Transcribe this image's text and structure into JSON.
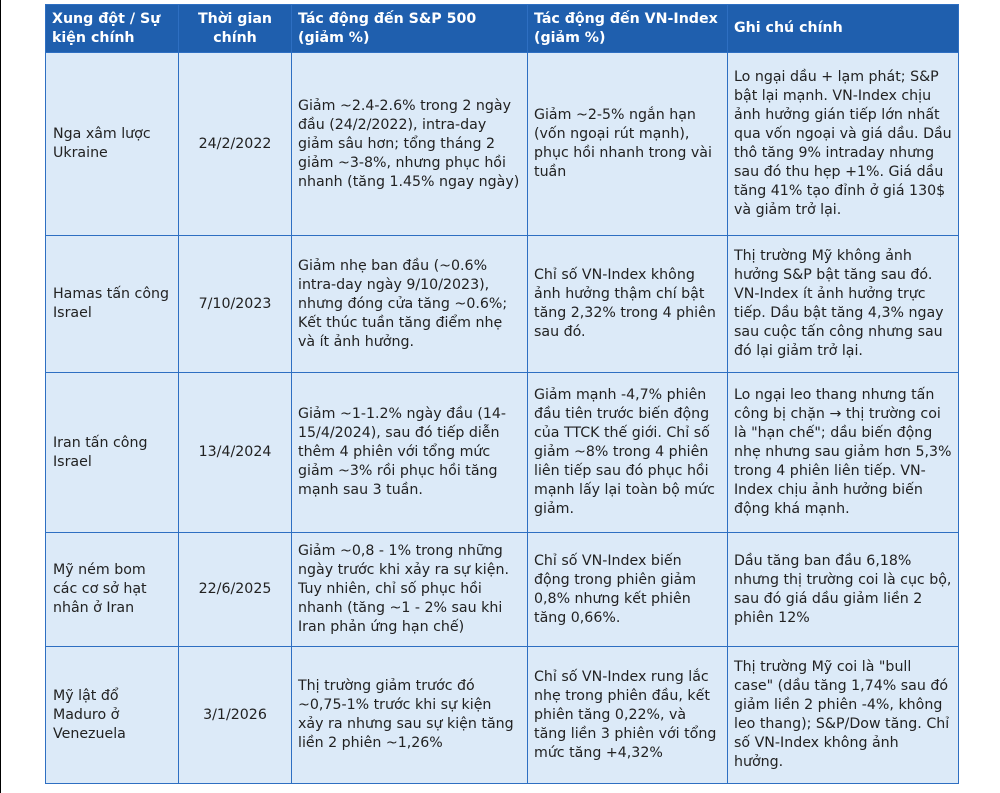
{
  "table": {
    "headers": [
      "Xung đột / Sự kiện chính",
      "Thời gian chính",
      "Tác động đến S&P 500 (giảm %)",
      "Tác động đến VN-Index (giảm %)",
      "Ghi chú chính"
    ],
    "rows": [
      {
        "event": "Nga xâm lược Ukraine",
        "date": "24/2/2022",
        "sp500": "Giảm ~2.4-2.6% trong 2 ngày đầu (24/2/2022), intra-day giảm sâu hơn; tổng tháng 2 giảm ~3-8%, nhưng phục hồi nhanh (tăng 1.45% ngay ngày)",
        "vnindex": "Giảm ~2-5% ngắn hạn (vốn ngoại rút mạnh), phục hồi nhanh trong vài tuần",
        "notes": "Lo ngại dầu + lạm phát; S&P bật lại mạnh. VN-Index chịu ảnh hưởng gián tiếp lớn nhất qua vốn ngoại và giá dầu. Dầu thô tăng 9% intraday nhưng sau đó thu hẹp +1%. Giá dầu tăng 41% tạo đỉnh ở giá 130$ và giảm trở lại."
      },
      {
        "event": "Hamas tấn công Israel",
        "date": "7/10/2023",
        "sp500": "Giảm nhẹ ban đầu (~0.6% intra-day ngày 9/10/2023), nhưng đóng cửa tăng ~0.6%; Kết thúc tuần tăng điểm nhẹ và ít ảnh hưởng.",
        "vnindex": "Chỉ số VN-Index không ảnh hưởng thậm chí bật tăng 2,32% trong 4 phiên sau đó.",
        "notes": "Thị trường Mỹ không ảnh hưởng S&P bật tăng sau đó. VN-Index ít ảnh hưởng trực tiếp. Dầu bật tăng 4,3% ngay sau cuộc tấn công nhưng sau đó lại giảm trở lại."
      },
      {
        "event": "Iran tấn công Israel",
        "date": "13/4/2024",
        "sp500": "Giảm ~1-1.2% ngày đầu (14-15/4/2024), sau đó tiếp diễn thêm 4 phiên với tổng mức giảm ~3% rồi phục hồi tăng mạnh sau 3 tuần.",
        "vnindex": "Giảm mạnh -4,7% phiên đầu tiên trước biến động của TTCK thế giới. Chỉ số giảm ~8% trong 4 phiên liên tiếp sau đó phục hồi mạnh lấy lại toàn bộ mức giảm.",
        "notes": "Lo ngại leo thang nhưng tấn công bị chặn → thị trường coi là \"hạn chế\"; dầu biến động nhẹ nhưng sau giảm hơn 5,3% trong 4 phiên liên tiếp. VN-Index chịu ảnh hưởng biến động khá mạnh."
      },
      {
        "event": "Mỹ ném bom các cơ sở hạt nhân ở Iran",
        "date": "22/6/2025",
        "sp500": "Giảm ~0,8 - 1% trong những ngày trước khi xảy ra sự kiện. Tuy nhiên, chỉ số  phục hồi nhanh (tăng ~1 - 2% sau khi Iran phản ứng hạn chế)",
        "vnindex": "Chỉ số VN-Index biến động trong phiên giảm 0,8% nhưng kết phiên tăng 0,66%.",
        "notes": "Dầu tăng ban đầu 6,18% nhưng thị trường coi là cục bộ, sau đó giá dầu giảm liền 2 phiên 12%"
      },
      {
        "event": "Mỹ lật đổ Maduro ở Venezuela",
        "date": "3/1/2026",
        "sp500": "Thị trường giảm trước đó ~0,75-1% trước khi sự kiện xảy ra nhưng sau sự kiện tăng liền 2 phiên ~1,26%",
        "vnindex": "Chỉ số VN-Index rung lắc nhẹ trong phiên đầu, kết phiên tăng 0,22%, và tăng liền 3 phiên với tổng mức tăng +4,32%",
        "notes": "Thị trường Mỹ coi là \"bull case\" (dầu tăng 1,74% sau đó giảm liền 2 phiên -4%, không leo thang); S&P/Dow tăng. Chỉ số VN-Index không ảnh hưởng."
      }
    ]
  },
  "colors": {
    "header_bg": "#1f5fae",
    "row_bg": "#dceaf8",
    "border": "#2e6fc2"
  }
}
